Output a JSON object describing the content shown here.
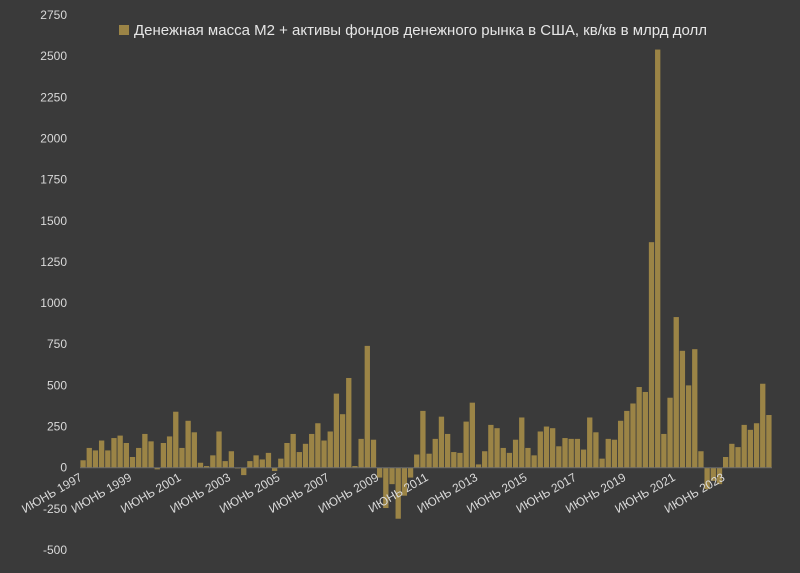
{
  "chart_data": {
    "type": "bar",
    "title": "",
    "xlabel": "",
    "ylabel": "",
    "ylim": [
      -500,
      2750
    ],
    "yticks": [
      2750,
      2500,
      2250,
      2000,
      1750,
      1500,
      1250,
      1000,
      750,
      500,
      250,
      0,
      -250,
      -500
    ],
    "ytick_labels": [
      "2750",
      "2500",
      "2250",
      "2000",
      "1750",
      "1500",
      "1250",
      "1000",
      "750",
      "500",
      "250",
      "0",
      "-250",
      "-500"
    ],
    "grid": "none",
    "legend_position": "top",
    "bar_color": "#9b8446",
    "x_tick_labels": [
      {
        "label": "ИЮНЬ 1997",
        "index": 0
      },
      {
        "label": "ИЮНЬ 1999",
        "index": 8
      },
      {
        "label": "ИЮНЬ 2001",
        "index": 16
      },
      {
        "label": "ИЮНЬ 2003",
        "index": 24
      },
      {
        "label": "ИЮНЬ 2005",
        "index": 32
      },
      {
        "label": "ИЮНЬ 2007",
        "index": 40
      },
      {
        "label": "ИЮНЬ 2009",
        "index": 48
      },
      {
        "label": "ИЮНЬ 2011",
        "index": 56
      },
      {
        "label": "ИЮНЬ 2013",
        "index": 64
      },
      {
        "label": "ИЮНЬ 2015",
        "index": 72
      },
      {
        "label": "ИЮНЬ 2017",
        "index": 80
      },
      {
        "label": "ИЮНЬ 2019",
        "index": 88
      },
      {
        "label": "ИЮНЬ 2021",
        "index": 96
      },
      {
        "label": "ИЮНЬ 2023",
        "index": 104
      }
    ],
    "series": [
      {
        "name": "Денежная масса M2 + активы фондов денежного рынка в США, кв/кв в млрд долл",
        "values": [
          45,
          120,
          105,
          165,
          105,
          180,
          195,
          150,
          65,
          120,
          205,
          160,
          -10,
          150,
          190,
          340,
          120,
          285,
          215,
          30,
          10,
          75,
          220,
          40,
          100,
          -5,
          -45,
          40,
          75,
          50,
          90,
          -20,
          55,
          150,
          205,
          95,
          145,
          205,
          270,
          165,
          220,
          450,
          325,
          545,
          10,
          175,
          740,
          170,
          -60,
          -245,
          -100,
          -310,
          -170,
          -60,
          80,
          345,
          85,
          175,
          310,
          205,
          95,
          90,
          280,
          395,
          20,
          100,
          260,
          240,
          120,
          90,
          170,
          305,
          120,
          75,
          220,
          250,
          240,
          130,
          180,
          175,
          175,
          110,
          305,
          215,
          55,
          175,
          170,
          285,
          345,
          390,
          490,
          460,
          1370,
          2540,
          205,
          425,
          915,
          710,
          500,
          720,
          100,
          -130,
          -80,
          -100,
          65,
          145,
          125,
          260,
          230,
          270,
          510,
          320
        ]
      }
    ]
  }
}
